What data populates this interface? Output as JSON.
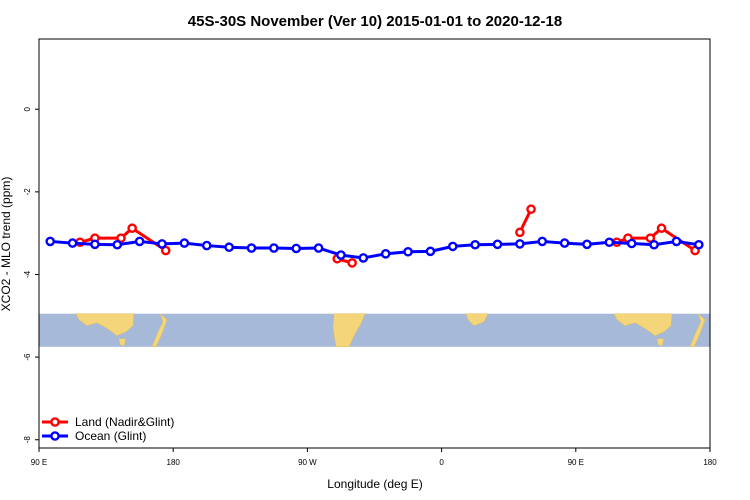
{
  "chart_data": {
    "type": "line",
    "title": "45S-30S November (Ver 10)   2015-01-01 to 2020-12-18",
    "xlabel": "Longitude (deg E)",
    "ylabel": "XCO2 - MLO trend (ppm)",
    "xlim": [
      90,
      540
    ],
    "ylim": [
      -8.2,
      1.7
    ],
    "x_ticks": [
      {
        "value": 90,
        "label": "90 E"
      },
      {
        "value": 180,
        "label": "180"
      },
      {
        "value": 270,
        "label": "90 W"
      },
      {
        "value": 360,
        "label": "0"
      },
      {
        "value": 450,
        "label": "90 E"
      },
      {
        "value": 540,
        "label": "180"
      }
    ],
    "y_ticks": [
      {
        "value": 0,
        "label": "0"
      },
      {
        "value": -2,
        "label": "-2"
      },
      {
        "value": -4,
        "label": "-4"
      },
      {
        "value": -6,
        "label": "-6"
      },
      {
        "value": -8,
        "label": "-8"
      }
    ],
    "legend_position": "bottom-left",
    "series": [
      {
        "name": "Land (Nadir&Glint)",
        "color": "#ff0000",
        "segments": [
          [
            [
              117.5,
              -3.22
            ],
            [
              127.5,
              -3.12
            ],
            [
              145,
              -3.12
            ],
            [
              152.5,
              -2.88
            ],
            [
              175,
              -3.42
            ]
          ],
          [
            [
              290,
              -3.62
            ],
            [
              300,
              -3.72
            ]
          ],
          [
            [
              412.5,
              -2.98
            ],
            [
              420,
              -2.42
            ]
          ],
          [
            [
              477.5,
              -3.22
            ],
            [
              485,
              -3.12
            ],
            [
              500,
              -3.12
            ],
            [
              507.5,
              -2.88
            ],
            [
              530,
              -3.42
            ]
          ]
        ]
      },
      {
        "name": "Ocean (Glint)",
        "color": "#0000ff",
        "segments": [
          [
            [
              97.5,
              -3.2
            ],
            [
              112.5,
              -3.24
            ],
            [
              127.5,
              -3.27
            ],
            [
              142.5,
              -3.28
            ],
            [
              157.5,
              -3.2
            ],
            [
              172.5,
              -3.26
            ],
            [
              187.5,
              -3.24
            ],
            [
              202.5,
              -3.3
            ],
            [
              217.5,
              -3.34
            ],
            [
              232.5,
              -3.36
            ],
            [
              247.5,
              -3.36
            ],
            [
              262.5,
              -3.37
            ],
            [
              277.5,
              -3.36
            ],
            [
              292.5,
              -3.53
            ],
            [
              307.5,
              -3.6
            ],
            [
              322.5,
              -3.5
            ],
            [
              337.5,
              -3.45
            ],
            [
              352.5,
              -3.44
            ],
            [
              367.5,
              -3.32
            ],
            [
              382.5,
              -3.28
            ],
            [
              397.5,
              -3.27
            ],
            [
              412.5,
              -3.26
            ],
            [
              427.5,
              -3.2
            ],
            [
              442.5,
              -3.24
            ],
            [
              457.5,
              -3.27
            ],
            [
              472.5,
              -3.22
            ],
            [
              487.5,
              -3.25
            ],
            [
              502.5,
              -3.28
            ],
            [
              517.5,
              -3.2
            ],
            [
              532.5,
              -3.28
            ]
          ]
        ]
      }
    ],
    "background_map_band": {
      "y_range": [
        -4.95,
        -5.75
      ],
      "ocean_color": "#a6b9d9",
      "land_color": "#f5d57a"
    }
  }
}
